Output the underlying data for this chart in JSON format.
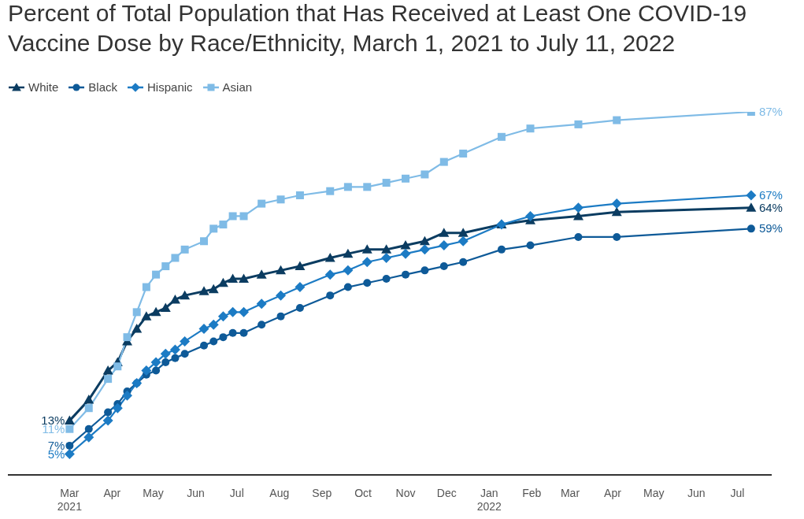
{
  "chart_data": {
    "type": "line",
    "title": "Percent of Total Population that Has Received at Least One COVID-19 Vaccine Dose by Race/Ethnicity, March 1, 2021 to July 11, 2022",
    "x": [
      "2021-03-01",
      "2021-03-15",
      "2021-03-29",
      "2021-04-05",
      "2021-04-12",
      "2021-04-19",
      "2021-04-26",
      "2021-05-03",
      "2021-05-10",
      "2021-05-17",
      "2021-05-24",
      "2021-06-07",
      "2021-06-14",
      "2021-06-21",
      "2021-06-28",
      "2021-07-06",
      "2021-07-19",
      "2021-08-02",
      "2021-08-16",
      "2021-09-07",
      "2021-09-20",
      "2021-10-04",
      "2021-10-18",
      "2021-11-01",
      "2021-11-15",
      "2021-11-29",
      "2021-12-13",
      "2022-01-10",
      "2022-01-31",
      "2022-03-07",
      "2022-04-04",
      "2022-07-11"
    ],
    "series": [
      {
        "name": "White",
        "color": "#0b3c61",
        "marker": "triangle",
        "values": [
          13,
          18,
          25,
          27,
          32,
          35,
          38,
          39,
          40,
          42,
          43,
          44,
          44.5,
          46,
          47,
          47,
          48,
          49,
          50,
          52,
          53,
          54,
          54,
          55,
          56,
          58,
          58,
          60,
          61,
          62,
          63,
          64
        ],
        "value_labels": [
          "13%",
          null,
          null,
          null,
          null,
          null,
          null,
          null,
          null,
          null,
          null,
          null,
          null,
          null,
          null,
          null,
          null,
          null,
          null,
          null,
          null,
          null,
          null,
          null,
          null,
          null,
          null,
          null,
          null,
          null,
          null,
          "64%"
        ]
      },
      {
        "name": "Black",
        "color": "#0e5a98",
        "marker": "circle",
        "values": [
          7,
          11,
          15,
          17,
          20,
          22,
          24,
          25,
          27,
          28,
          29,
          31,
          32,
          33,
          34,
          34,
          36,
          38,
          40,
          43,
          45,
          46,
          47,
          48,
          49,
          50,
          51,
          54,
          55,
          57,
          57,
          59
        ],
        "value_labels": [
          "7%",
          null,
          null,
          null,
          null,
          null,
          null,
          null,
          null,
          null,
          null,
          null,
          null,
          null,
          null,
          null,
          null,
          null,
          null,
          null,
          null,
          null,
          null,
          null,
          null,
          null,
          null,
          null,
          null,
          null,
          null,
          "59%"
        ]
      },
      {
        "name": "Hispanic",
        "color": "#1c7bc4",
        "marker": "diamond",
        "values": [
          5,
          9,
          13,
          16,
          19,
          22,
          25,
          27,
          29,
          30,
          32,
          35,
          36,
          38,
          39,
          39,
          41,
          43,
          45,
          48,
          49,
          51,
          52,
          53,
          54,
          55,
          56,
          60,
          62,
          64,
          65,
          67
        ],
        "value_labels": [
          "5%",
          null,
          null,
          null,
          null,
          null,
          null,
          null,
          null,
          null,
          null,
          null,
          null,
          null,
          null,
          null,
          null,
          null,
          null,
          null,
          null,
          null,
          null,
          null,
          null,
          null,
          null,
          null,
          null,
          null,
          null,
          "67%"
        ]
      },
      {
        "name": "Asian",
        "color": "#7fbbe6",
        "marker": "square",
        "values": [
          11,
          16,
          23,
          26,
          33,
          39,
          45,
          48,
          50,
          52,
          54,
          56,
          59,
          60,
          62,
          62,
          65,
          66,
          67,
          68,
          69,
          69,
          70,
          71,
          72,
          75,
          77,
          81,
          83,
          84,
          85,
          87
        ],
        "value_labels": [
          "11%",
          null,
          null,
          null,
          null,
          null,
          null,
          null,
          null,
          null,
          null,
          null,
          null,
          null,
          null,
          null,
          null,
          null,
          null,
          null,
          null,
          null,
          null,
          null,
          null,
          null,
          null,
          null,
          null,
          null,
          null,
          "87%"
        ]
      }
    ],
    "xlim": [
      "2021-01-15",
      "2022-07-26"
    ],
    "xticks": [
      {
        "value": "2021-03-01",
        "label": "Mar\n2021"
      },
      {
        "value": "2021-04-01",
        "label": "Apr"
      },
      {
        "value": "2021-05-01",
        "label": "May"
      },
      {
        "value": "2021-06-01",
        "label": "Jun"
      },
      {
        "value": "2021-07-01",
        "label": "Jul"
      },
      {
        "value": "2021-08-01",
        "label": "Aug"
      },
      {
        "value": "2021-09-01",
        "label": "Sep"
      },
      {
        "value": "2021-10-01",
        "label": "Oct"
      },
      {
        "value": "2021-11-01",
        "label": "Nov"
      },
      {
        "value": "2021-12-01",
        "label": "Dec"
      },
      {
        "value": "2022-01-01",
        "label": "Jan\n2022"
      },
      {
        "value": "2022-02-01",
        "label": "Feb"
      },
      {
        "value": "2022-03-01",
        "label": "Mar"
      },
      {
        "value": "2022-04-01",
        "label": "Apr"
      },
      {
        "value": "2022-05-01",
        "label": "May"
      },
      {
        "value": "2022-06-01",
        "label": "Jun"
      },
      {
        "value": "2022-07-01",
        "label": "Jul"
      }
    ],
    "tick_labels": "x",
    "grid": false,
    "legend": "top left"
  }
}
